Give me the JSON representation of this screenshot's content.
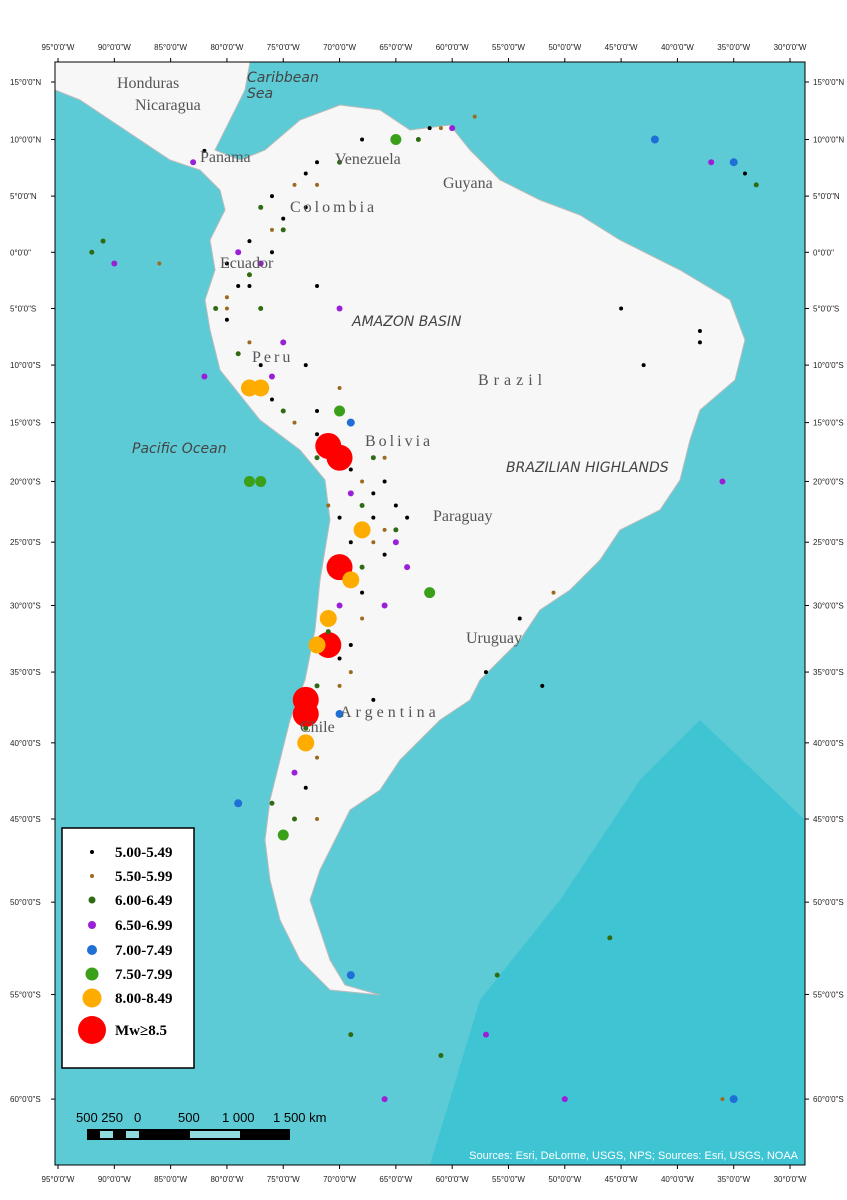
{
  "map": {
    "lon_ticks": [
      {
        "value": -95,
        "label": "95°0'0\"W"
      },
      {
        "value": -90,
        "label": "90°0'0\"W"
      },
      {
        "value": -85,
        "label": "85°0'0\"W"
      },
      {
        "value": -80,
        "label": "80°0'0\"W"
      },
      {
        "value": -75,
        "label": "75°0'0\"W"
      },
      {
        "value": -70,
        "label": "70°0'0\"W"
      },
      {
        "value": -65,
        "label": "65°0'0\"W"
      },
      {
        "value": -60,
        "label": "60°0'0\"W"
      },
      {
        "value": -55,
        "label": "55°0'0\"W"
      },
      {
        "value": -50,
        "label": "50°0'0\"W"
      },
      {
        "value": -45,
        "label": "45°0'0\"W"
      },
      {
        "value": -40,
        "label": "40°0'0\"W"
      },
      {
        "value": -35,
        "label": "35°0'0\"W"
      },
      {
        "value": -30,
        "label": "30°0'0\"W"
      }
    ],
    "lat_ticks": [
      {
        "value": 15,
        "label": "15°0'0\"N"
      },
      {
        "value": 10,
        "label": "10°0'0\"N"
      },
      {
        "value": 5,
        "label": "5°0'0\"N"
      },
      {
        "value": 0,
        "label": "0°0'0\""
      },
      {
        "value": -5,
        "label": "5°0'0\"S"
      },
      {
        "value": -10,
        "label": "10°0'0\"S"
      },
      {
        "value": -15,
        "label": "15°0'0\"S"
      },
      {
        "value": -20,
        "label": "20°0'0\"S"
      },
      {
        "value": -25,
        "label": "25°0'0\"S"
      },
      {
        "value": -30,
        "label": "30°0'0\"S"
      },
      {
        "value": -35,
        "label": "35°0'0\"S"
      },
      {
        "value": -40,
        "label": "40°0'0\"S"
      },
      {
        "value": -45,
        "label": "45°0'0\"S"
      },
      {
        "value": -50,
        "label": "50°0'0\"S"
      },
      {
        "value": -55,
        "label": "55°0'0\"S"
      },
      {
        "value": -60,
        "label": "60°0'0\"S"
      }
    ],
    "places": [
      "Honduras",
      "Nicaragua",
      "Caribbean",
      "Sea",
      "Panama",
      "Venezuela",
      "Colombia",
      "Guyana",
      "Ecuador",
      "AMAZON BASIN",
      "Peru",
      "Brazil",
      "Pacific Ocean",
      "Bolivia",
      "BRAZILIAN HIGHLANDS",
      "Paraguay",
      "Uruguay",
      "Argentina",
      "Chile"
    ],
    "classes": [
      {
        "label": "5.00-5.49",
        "color": "#000000"
      },
      {
        "label": "5.50-5.99",
        "color": "#9c6a1e"
      },
      {
        "label": "6.00-6.49",
        "color": "#2e6b12"
      },
      {
        "label": "6.50-6.99",
        "color": "#9b1fd6"
      },
      {
        "label": "7.00-7.49",
        "color": "#1f6fd6"
      },
      {
        "label": "7.50-7.99",
        "color": "#3aa01a"
      },
      {
        "label": "8.00-8.49",
        "color": "#ffac00"
      },
      {
        "label": "Mw≥8.5",
        "color": "#ff0000"
      }
    ],
    "points": [
      [
        -73,
        7,
        0
      ],
      [
        -72,
        8,
        0
      ],
      [
        -74,
        6,
        1
      ],
      [
        -76,
        5,
        0
      ],
      [
        -77,
        4,
        2
      ],
      [
        -75,
        3,
        0
      ],
      [
        -76,
        2,
        1
      ],
      [
        -78,
        1,
        0
      ],
      [
        -79,
        0,
        3
      ],
      [
        -80,
        -1,
        0
      ],
      [
        -78,
        -2,
        2
      ],
      [
        -79,
        -3,
        0
      ],
      [
        -80,
        -4,
        1
      ],
      [
        -81,
        -5,
        2
      ],
      [
        -80,
        -6,
        0
      ],
      [
        -78,
        -8,
        1
      ],
      [
        -79,
        -9,
        2
      ],
      [
        -77,
        -10,
        0
      ],
      [
        -76,
        -11,
        3
      ],
      [
        -77,
        -12,
        6
      ],
      [
        -76,
        -13,
        0
      ],
      [
        -75,
        -14,
        2
      ],
      [
        -74,
        -15,
        1
      ],
      [
        -72,
        -16,
        0
      ],
      [
        -71,
        -17,
        7
      ],
      [
        -70,
        -18,
        7
      ],
      [
        -69,
        -19,
        0
      ],
      [
        -68,
        -20,
        1
      ],
      [
        -67,
        -21,
        0
      ],
      [
        -68,
        -22,
        2
      ],
      [
        -67,
        -23,
        0
      ],
      [
        -66,
        -24,
        1
      ],
      [
        -68,
        -24,
        6
      ],
      [
        -69,
        -25,
        0
      ],
      [
        -70,
        -27,
        7
      ],
      [
        -69,
        -28,
        6
      ],
      [
        -68,
        -29,
        0
      ],
      [
        -70,
        -30,
        3
      ],
      [
        -71,
        -31,
        6
      ],
      [
        -72,
        -33,
        6
      ],
      [
        -71,
        -33,
        7
      ],
      [
        -70,
        -34,
        0
      ],
      [
        -69,
        -35,
        1
      ],
      [
        -72,
        -36,
        2
      ],
      [
        -73,
        -37,
        7
      ],
      [
        -73,
        -38,
        7
      ],
      [
        -73,
        -39,
        2
      ],
      [
        -73,
        -40,
        6
      ],
      [
        -72,
        -41,
        1
      ],
      [
        -73,
        -43,
        0
      ],
      [
        -74,
        -45,
        2
      ],
      [
        -75,
        -46,
        5
      ],
      [
        -69,
        -54,
        4
      ],
      [
        -62,
        -29,
        5
      ],
      [
        -64,
        -27,
        3
      ],
      [
        -65,
        -22,
        0
      ],
      [
        -66,
        -18,
        1
      ],
      [
        -69,
        -15,
        4
      ],
      [
        -70,
        -14,
        5
      ],
      [
        -70,
        -12,
        1
      ],
      [
        -73,
        -10,
        0
      ],
      [
        -75,
        -8,
        3
      ],
      [
        -77,
        -5,
        2
      ],
      [
        -78,
        -3,
        0
      ],
      [
        -77,
        -1,
        3
      ],
      [
        -76,
        0,
        0
      ],
      [
        -75,
        2,
        2
      ],
      [
        -73,
        4,
        0
      ],
      [
        -72,
        6,
        1
      ],
      [
        -70,
        8,
        2
      ],
      [
        -68,
        10,
        0
      ],
      [
        -65,
        10,
        5
      ],
      [
        -62,
        11,
        0
      ],
      [
        -61,
        11,
        1
      ],
      [
        -63,
        10,
        2
      ],
      [
        -60,
        11,
        3
      ],
      [
        -58,
        12,
        1
      ],
      [
        -83,
        8,
        3
      ],
      [
        -82,
        9,
        0
      ],
      [
        -86,
        -1,
        1
      ],
      [
        -90,
        -1,
        3
      ],
      [
        -92,
        0,
        2
      ],
      [
        -91,
        1,
        2
      ],
      [
        -70,
        -5,
        3
      ],
      [
        -72,
        -3,
        0
      ],
      [
        -57,
        -35,
        0
      ],
      [
        -45,
        -5,
        0
      ],
      [
        -38,
        -7,
        0
      ],
      [
        -43,
        -10,
        0
      ],
      [
        -38,
        -8,
        0
      ],
      [
        -36,
        -20,
        3
      ],
      [
        -51,
        -29,
        1
      ],
      [
        -54,
        -31,
        0
      ],
      [
        -42,
        10,
        4
      ],
      [
        -35,
        8,
        4
      ],
      [
        -37,
        8,
        3
      ],
      [
        -34,
        7,
        0
      ],
      [
        -33,
        6,
        2
      ],
      [
        -79,
        -44,
        4
      ],
      [
        -82,
        -11,
        3
      ],
      [
        -78,
        -20,
        5
      ],
      [
        -66,
        -60,
        3
      ],
      [
        -50,
        -60,
        3
      ],
      [
        -35,
        -60,
        4
      ],
      [
        -36,
        -60,
        1
      ],
      [
        -52,
        -36,
        0
      ],
      [
        -67,
        -37,
        0
      ],
      [
        -70,
        -38,
        4
      ],
      [
        -80,
        -5,
        1
      ],
      [
        -78,
        -12,
        6
      ],
      [
        -71,
        -32,
        2
      ],
      [
        -70,
        -23,
        0
      ],
      [
        -71,
        -22,
        1
      ],
      [
        -69,
        -21,
        3
      ],
      [
        -66,
        -20,
        0
      ],
      [
        -67,
        -18,
        2
      ],
      [
        -72,
        -14,
        0
      ],
      [
        -72,
        -18,
        2
      ],
      [
        -68,
        -31,
        1
      ],
      [
        -66,
        -30,
        3
      ],
      [
        -69,
        -33,
        0
      ],
      [
        -70,
        -36,
        1
      ],
      [
        -74,
        -42,
        3
      ],
      [
        -72,
        -45,
        1
      ],
      [
        -46,
        -52,
        2
      ],
      [
        -56,
        -54,
        2
      ],
      [
        -57,
        -57,
        3
      ],
      [
        -61,
        -58,
        2
      ],
      [
        -69,
        -57,
        2
      ],
      [
        -76,
        -44,
        2
      ],
      [
        -77,
        -20,
        5
      ],
      [
        -68,
        -27,
        2
      ],
      [
        -66,
        -26,
        0
      ],
      [
        -65,
        -25,
        3
      ],
      [
        -67,
        -25,
        1
      ],
      [
        -64,
        -23,
        0
      ],
      [
        -65,
        -24,
        2
      ]
    ],
    "scale_labels": [
      "500 250",
      "0",
      "500",
      "1 000",
      "1 500 km"
    ],
    "sources": "Sources: Esri, DeLorme, USGS, NPS; Sources: Esri, USGS, NOAA"
  }
}
